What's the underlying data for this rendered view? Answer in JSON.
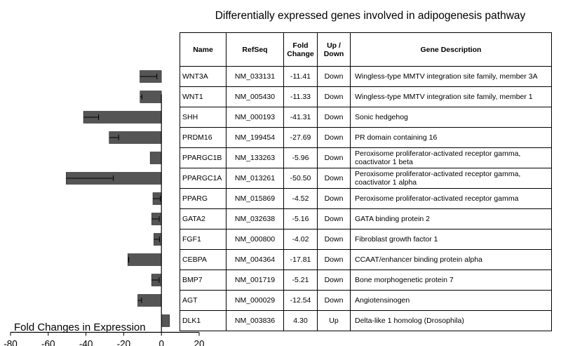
{
  "chart_data": {
    "type": "bar",
    "orientation": "horizontal",
    "title": "Differentially expressed genes involved in adipogenesis pathway",
    "xlabel": "Fold Changes in Expression",
    "ylabel": "",
    "xlim": [
      -80,
      20
    ],
    "xticks": [
      "-80",
      "-60",
      "-40",
      "-20",
      "0",
      "20"
    ],
    "categories": [
      "WNT3A",
      "WNT1",
      "SHH",
      "PRDM16",
      "PPARGC1B",
      "PPARGC1A",
      "PPARG",
      "GATA2",
      "FGF1",
      "CEBPA",
      "BMP7",
      "AGT",
      "DLK1"
    ],
    "values": [
      -11.41,
      -11.33,
      -41.31,
      -27.69,
      -5.96,
      -50.5,
      -4.52,
      -5.16,
      -4.02,
      -17.81,
      -5.21,
      -12.54,
      4.3
    ],
    "error": [
      9,
      1,
      8,
      5,
      0,
      25,
      4,
      4,
      3,
      0.5,
      4,
      2,
      0
    ],
    "bar_color": "#555555"
  },
  "table": {
    "headers": {
      "name": "Name",
      "refseq": "RefSeq",
      "fold": "Fold Change",
      "direction": "Up / Down",
      "description": "Gene Description"
    },
    "rows": [
      {
        "name": "WNT3A",
        "refseq": "NM_033131",
        "fold": "-11.41",
        "direction": "Down",
        "description": "Wingless-type MMTV integration site family, member 3A"
      },
      {
        "name": "WNT1",
        "refseq": "NM_005430",
        "fold": "-11.33",
        "direction": "Down",
        "description": "Wingless-type MMTV integration site family, member 1"
      },
      {
        "name": "SHH",
        "refseq": "NM_000193",
        "fold": "-41.31",
        "direction": "Down",
        "description": "Sonic hedgehog"
      },
      {
        "name": "PRDM16",
        "refseq": "NM_199454",
        "fold": "-27.69",
        "direction": "Down",
        "description": "PR domain containing 16"
      },
      {
        "name": "PPARGC1B",
        "refseq": "NM_133263",
        "fold": "-5.96",
        "direction": "Down",
        "description": "Peroxisome proliferator-activated receptor gamma, coactivator 1 beta"
      },
      {
        "name": "PPARGC1A",
        "refseq": "NM_013261",
        "fold": "-50.50",
        "direction": "Down",
        "description": "Peroxisome proliferator-activated receptor gamma, coactivator 1 alpha"
      },
      {
        "name": "PPARG",
        "refseq": "NM_015869",
        "fold": "-4.52",
        "direction": "Down",
        "description": "Peroxisome proliferator-activated receptor gamma"
      },
      {
        "name": "GATA2",
        "refseq": "NM_032638",
        "fold": "-5.16",
        "direction": "Down",
        "description": "GATA binding protein 2"
      },
      {
        "name": "FGF1",
        "refseq": "NM_000800",
        "fold": "-4.02",
        "direction": "Down",
        "description": "Fibroblast growth factor 1"
      },
      {
        "name": "CEBPA",
        "refseq": "NM_004364",
        "fold": "-17.81",
        "direction": "Down",
        "description": "CCAAT/enhancer binding protein alpha"
      },
      {
        "name": "BMP7",
        "refseq": "NM_001719",
        "fold": "-5.21",
        "direction": "Down",
        "description": "Bone morphogenetic protein 7"
      },
      {
        "name": "AGT",
        "refseq": "NM_000029",
        "fold": "-12.54",
        "direction": "Down",
        "description": "Angiotensinogen"
      },
      {
        "name": "DLK1",
        "refseq": "NM_003836",
        "fold": "4.30",
        "direction": "Up",
        "description": "Delta-like 1 homolog (Drosophila)"
      }
    ]
  }
}
